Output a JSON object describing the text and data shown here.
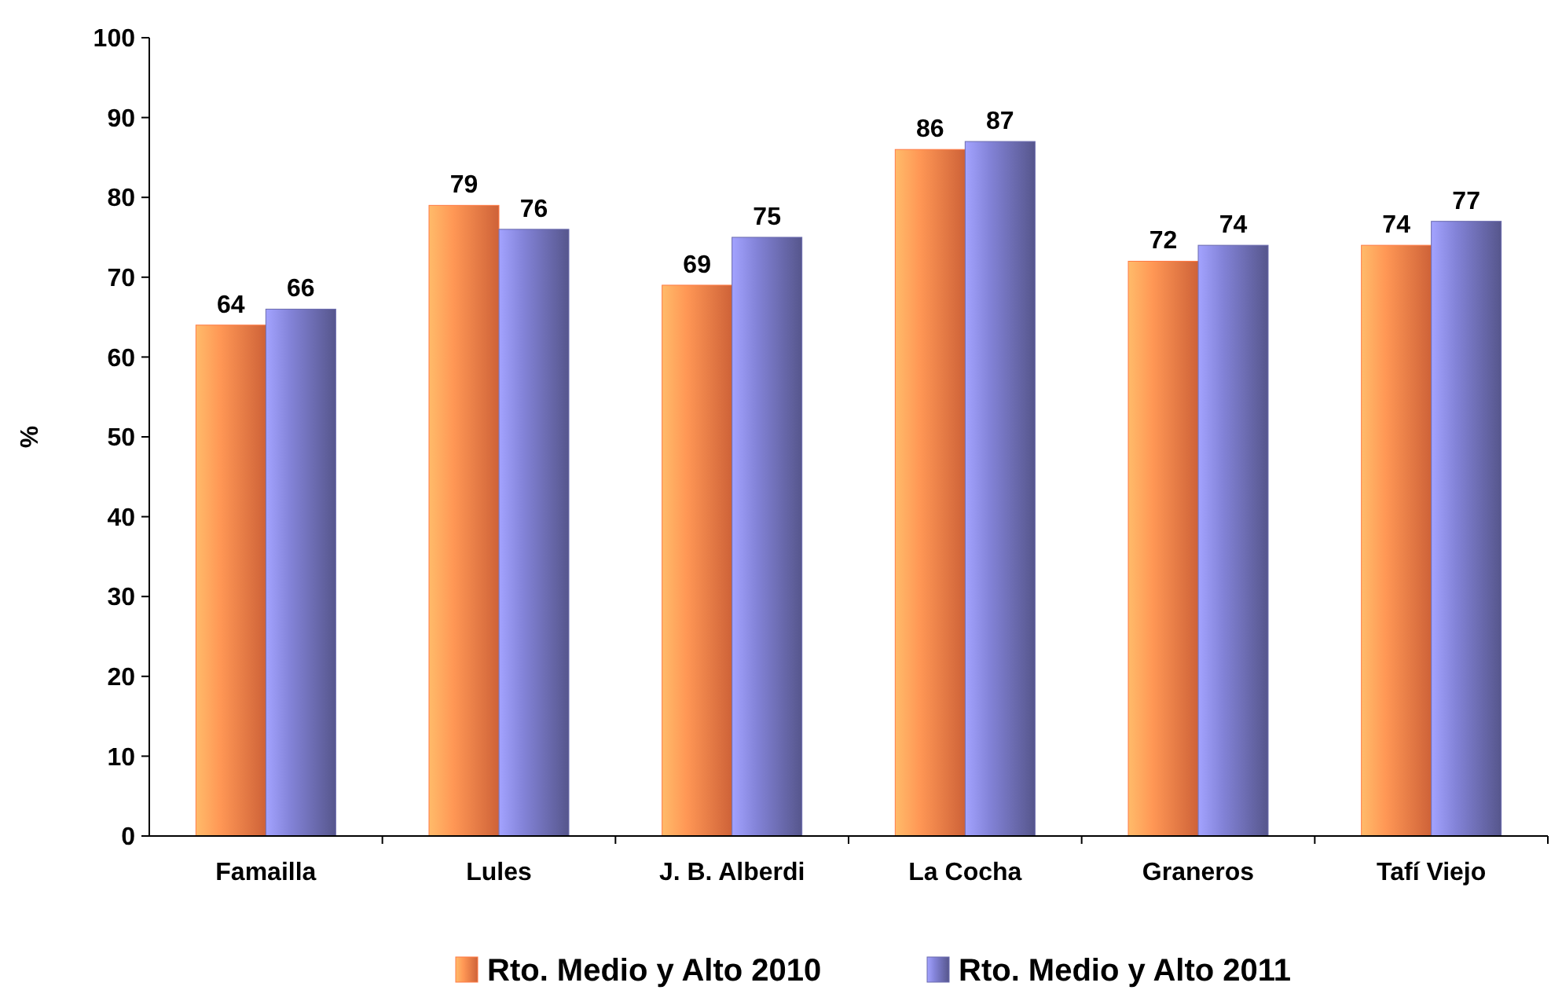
{
  "chart_data": {
    "type": "bar",
    "ylabel": "%",
    "categories": [
      "Famailla",
      "Lules",
      "J. B. Alberdi",
      "La Cocha",
      "Graneros",
      "Tafí Viejo"
    ],
    "series": [
      {
        "name": "Rto. Medio y Alto 2010",
        "color": "#ff7a45",
        "values": [
          64,
          79,
          69,
          86,
          72,
          74
        ]
      },
      {
        "name": "Rto. Medio y Alto 2011",
        "color": "#6a6aae",
        "values": [
          66,
          76,
          75,
          87,
          74,
          77
        ]
      }
    ],
    "ylim": [
      0,
      100
    ],
    "yticks": [
      0,
      10,
      20,
      30,
      40,
      50,
      60,
      70,
      80,
      90,
      100
    ],
    "data_labels": true,
    "legend": "bottom",
    "grid": false
  }
}
